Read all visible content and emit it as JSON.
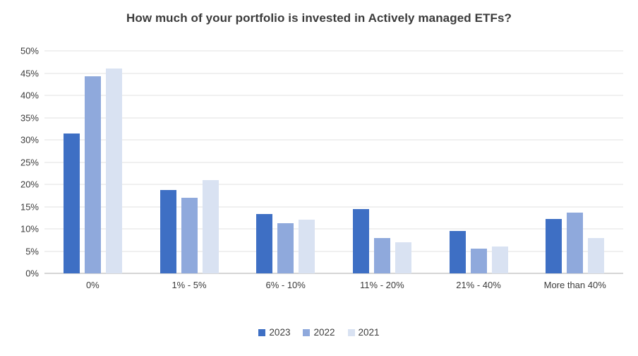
{
  "title": "How much of your portfolio is invested in Actively managed ETFs?",
  "chart_data": {
    "type": "bar",
    "title": "How much of your portfolio is invested in Actively managed ETFs?",
    "categories": [
      "0%",
      "1% - 5%",
      "6% - 10%",
      "11% - 20%",
      "21% - 40%",
      "More than 40%"
    ],
    "series": [
      {
        "name": "2023",
        "color": "#3E6FC4",
        "values": [
          31.5,
          18.7,
          13.3,
          14.5,
          9.5,
          12.2
        ]
      },
      {
        "name": "2022",
        "color": "#8FA9DC",
        "values": [
          44.3,
          17.0,
          11.2,
          8.0,
          5.6,
          13.6
        ]
      },
      {
        "name": "2021",
        "color": "#D9E2F2",
        "values": [
          46.0,
          21.0,
          12.0,
          7.0,
          6.0,
          8.0
        ]
      }
    ],
    "xlabel": "",
    "ylabel": "",
    "ylim": [
      0,
      50
    ],
    "ytick_step": 5,
    "ytick_suffix": "%",
    "grid": true,
    "legend_position": "bottom"
  },
  "colors": {
    "background": "#FFFFFF",
    "gridline": "#E2E2E2",
    "axis_line": "#D6D6D6",
    "text": "#3B3B3B"
  }
}
